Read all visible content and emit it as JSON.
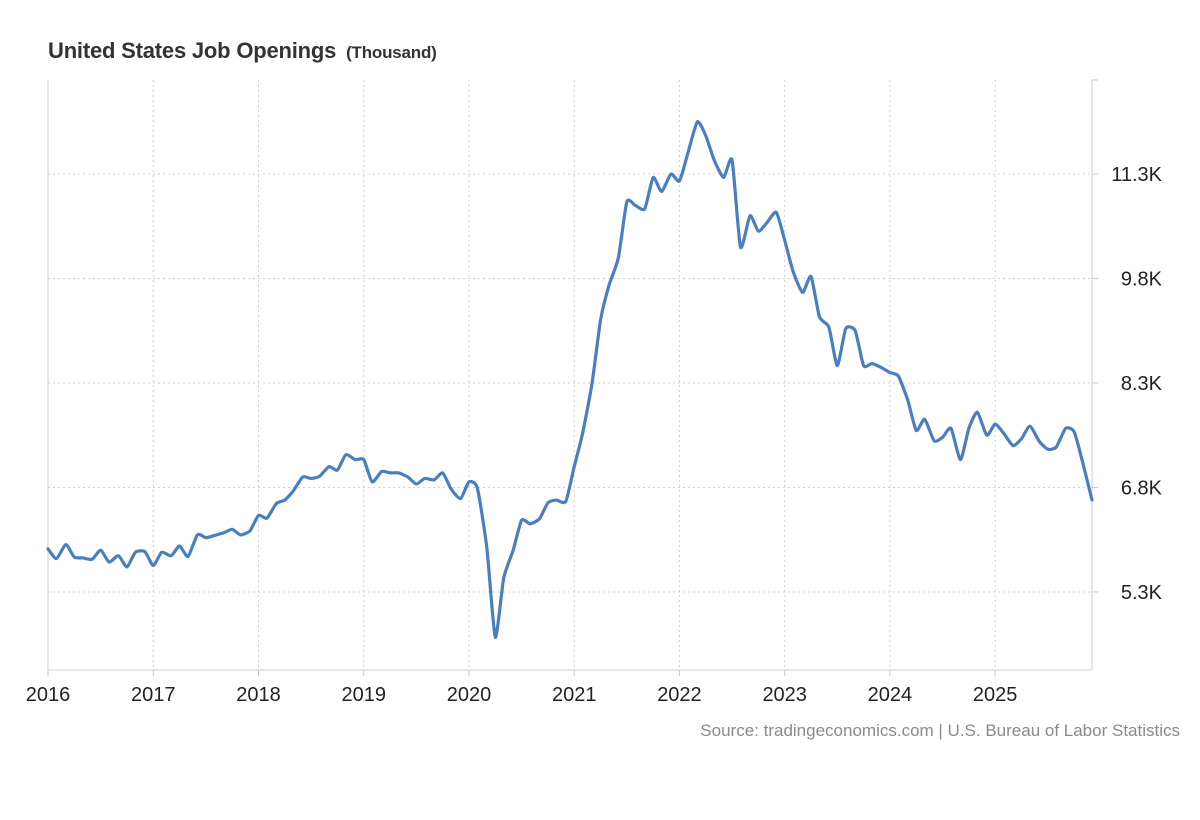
{
  "chart_data": {
    "type": "line",
    "title": "United States Job Openings",
    "title_unit": "(Thousand)",
    "series": [
      {
        "name": "Job Openings",
        "color": "#4a7fbf",
        "points": [
          [
            2016.0,
            5920
          ],
          [
            2016.08,
            5780
          ],
          [
            2016.17,
            5980
          ],
          [
            2016.25,
            5800
          ],
          [
            2016.33,
            5790
          ],
          [
            2016.42,
            5770
          ],
          [
            2016.5,
            5900
          ],
          [
            2016.58,
            5730
          ],
          [
            2016.67,
            5820
          ],
          [
            2016.75,
            5660
          ],
          [
            2016.83,
            5870
          ],
          [
            2016.92,
            5880
          ],
          [
            2017.0,
            5680
          ],
          [
            2017.08,
            5870
          ],
          [
            2017.17,
            5820
          ],
          [
            2017.25,
            5960
          ],
          [
            2017.33,
            5810
          ],
          [
            2017.42,
            6120
          ],
          [
            2017.5,
            6080
          ],
          [
            2017.58,
            6110
          ],
          [
            2017.67,
            6150
          ],
          [
            2017.75,
            6200
          ],
          [
            2017.83,
            6120
          ],
          [
            2017.92,
            6180
          ],
          [
            2018.0,
            6400
          ],
          [
            2018.08,
            6360
          ],
          [
            2018.17,
            6570
          ],
          [
            2018.25,
            6620
          ],
          [
            2018.33,
            6750
          ],
          [
            2018.42,
            6950
          ],
          [
            2018.5,
            6930
          ],
          [
            2018.58,
            6960
          ],
          [
            2018.67,
            7100
          ],
          [
            2018.75,
            7050
          ],
          [
            2018.83,
            7270
          ],
          [
            2018.92,
            7200
          ],
          [
            2019.0,
            7200
          ],
          [
            2019.08,
            6880
          ],
          [
            2019.17,
            7030
          ],
          [
            2019.25,
            7010
          ],
          [
            2019.33,
            7010
          ],
          [
            2019.42,
            6950
          ],
          [
            2019.5,
            6850
          ],
          [
            2019.58,
            6930
          ],
          [
            2019.67,
            6910
          ],
          [
            2019.75,
            7010
          ],
          [
            2019.83,
            6780
          ],
          [
            2019.92,
            6640
          ],
          [
            2020.0,
            6880
          ],
          [
            2020.08,
            6790
          ],
          [
            2020.17,
            5930
          ],
          [
            2020.25,
            4650
          ],
          [
            2020.33,
            5500
          ],
          [
            2020.42,
            5900
          ],
          [
            2020.5,
            6330
          ],
          [
            2020.58,
            6280
          ],
          [
            2020.67,
            6350
          ],
          [
            2020.75,
            6580
          ],
          [
            2020.83,
            6620
          ],
          [
            2020.92,
            6600
          ],
          [
            2021.0,
            7100
          ],
          [
            2021.08,
            7580
          ],
          [
            2021.17,
            8300
          ],
          [
            2021.25,
            9200
          ],
          [
            2021.33,
            9700
          ],
          [
            2021.42,
            10100
          ],
          [
            2021.5,
            10900
          ],
          [
            2021.58,
            10850
          ],
          [
            2021.67,
            10800
          ],
          [
            2021.75,
            11250
          ],
          [
            2021.83,
            11050
          ],
          [
            2021.92,
            11300
          ],
          [
            2022.0,
            11200
          ],
          [
            2022.08,
            11600
          ],
          [
            2022.17,
            12050
          ],
          [
            2022.25,
            11850
          ],
          [
            2022.33,
            11500
          ],
          [
            2022.42,
            11250
          ],
          [
            2022.5,
            11500
          ],
          [
            2022.58,
            10250
          ],
          [
            2022.67,
            10700
          ],
          [
            2022.75,
            10480
          ],
          [
            2022.83,
            10600
          ],
          [
            2022.92,
            10750
          ],
          [
            2023.0,
            10350
          ],
          [
            2023.08,
            9900
          ],
          [
            2023.17,
            9600
          ],
          [
            2023.25,
            9830
          ],
          [
            2023.33,
            9250
          ],
          [
            2023.42,
            9100
          ],
          [
            2023.5,
            8550
          ],
          [
            2023.58,
            9080
          ],
          [
            2023.67,
            9050
          ],
          [
            2023.75,
            8550
          ],
          [
            2023.83,
            8580
          ],
          [
            2023.92,
            8520
          ],
          [
            2024.0,
            8450
          ],
          [
            2024.08,
            8400
          ],
          [
            2024.17,
            8050
          ],
          [
            2024.25,
            7620
          ],
          [
            2024.33,
            7780
          ],
          [
            2024.42,
            7470
          ],
          [
            2024.5,
            7520
          ],
          [
            2024.58,
            7650
          ],
          [
            2024.67,
            7200
          ],
          [
            2024.75,
            7650
          ],
          [
            2024.83,
            7880
          ],
          [
            2024.92,
            7550
          ],
          [
            2025.0,
            7710
          ],
          [
            2025.08,
            7580
          ],
          [
            2025.17,
            7400
          ],
          [
            2025.25,
            7500
          ],
          [
            2025.33,
            7680
          ],
          [
            2025.42,
            7460
          ],
          [
            2025.5,
            7350
          ],
          [
            2025.58,
            7380
          ],
          [
            2025.67,
            7650
          ],
          [
            2025.75,
            7600
          ],
          [
            2025.83,
            7170
          ],
          [
            2025.92,
            6620
          ]
        ]
      }
    ],
    "x_ticks": [
      2016,
      2017,
      2018,
      2019,
      2020,
      2021,
      2022,
      2023,
      2024,
      2025
    ],
    "x_tick_labels": [
      "2016",
      "2017",
      "2018",
      "2019",
      "2020",
      "2021",
      "2022",
      "2023",
      "2024",
      "2025"
    ],
    "xlim": [
      2016,
      2025.92
    ],
    "y_ticks": [
      5300,
      6800,
      8300,
      9800,
      11300
    ],
    "y_tick_labels": [
      "5.3K",
      "6.8K",
      "8.3K",
      "9.8K",
      "11.3K"
    ],
    "ylim": [
      4180,
      12650
    ],
    "y_axis_side": "right",
    "grid": true,
    "grid_style": "dotted",
    "source": "Source: tradingeconomics.com | U.S. Bureau of Labor Statistics"
  }
}
